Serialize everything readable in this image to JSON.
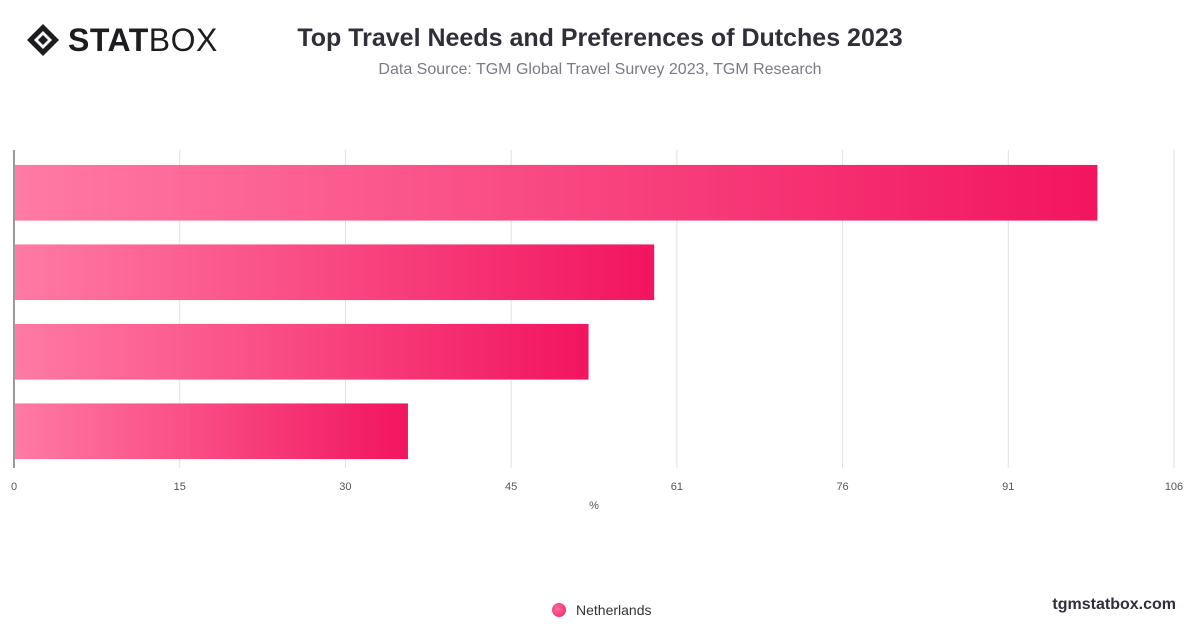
{
  "brand": {
    "logo_bold": "STAT",
    "logo_light": "BOX",
    "watermark": "tgmstatbox.com"
  },
  "colors": {
    "bar_start": "#ff7aa5",
    "bar_end": "#f2155f",
    "grid": "#e2e2e2",
    "axis": "#333333"
  },
  "chart_data": {
    "type": "bar",
    "orientation": "horizontal",
    "title": "Top Travel Needs and Preferences of Dutches 2023",
    "subtitle": "Data Source: TGM Global Travel Survey 2023, TGM Research",
    "xlabel": "%",
    "ylabel": "",
    "xlim": [
      0,
      106
    ],
    "x_ticks": [
      "0",
      "15",
      "30",
      "45",
      "61",
      "76",
      "91",
      "106"
    ],
    "categories": [
      "",
      "",
      "",
      ""
    ],
    "series": [
      {
        "name": "Netherlands",
        "values": [
          99,
          58.5,
          52.5,
          36
        ]
      }
    ],
    "legend_position": "bottom",
    "grid": true
  }
}
